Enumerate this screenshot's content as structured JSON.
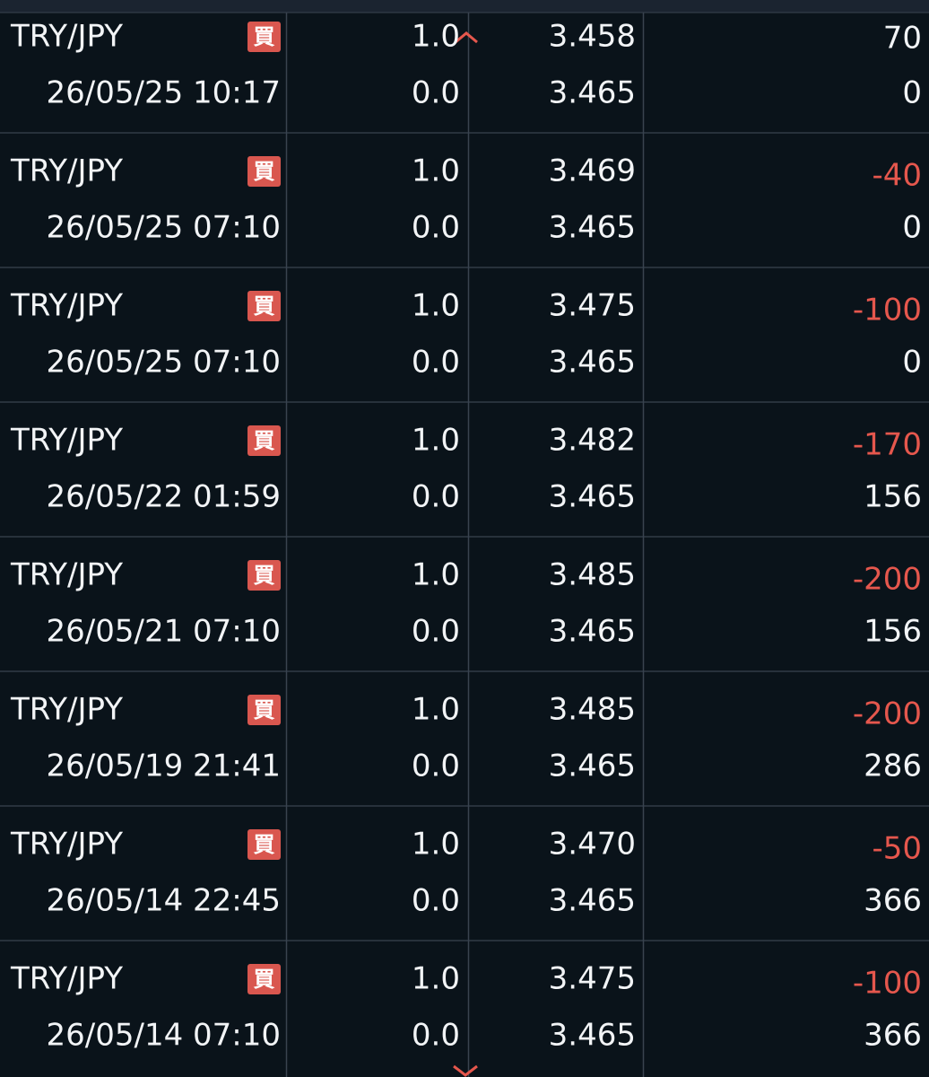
{
  "rows": [
    {
      "pair": "TRY/JPY",
      "side": "買",
      "datetime": "26/05/25 10:17",
      "lots": "1.0",
      "closed_lots": "0.0",
      "open_price": "3.458",
      "current_price": "3.465",
      "profit": "70",
      "swap": "0"
    },
    {
      "pair": "TRY/JPY",
      "side": "買",
      "datetime": "26/05/25 07:10",
      "lots": "1.0",
      "closed_lots": "0.0",
      "open_price": "3.469",
      "current_price": "3.465",
      "profit": "-40",
      "swap": "0"
    },
    {
      "pair": "TRY/JPY",
      "side": "買",
      "datetime": "26/05/25 07:10",
      "lots": "1.0",
      "closed_lots": "0.0",
      "open_price": "3.475",
      "current_price": "3.465",
      "profit": "-100",
      "swap": "0"
    },
    {
      "pair": "TRY/JPY",
      "side": "買",
      "datetime": "26/05/22 01:59",
      "lots": "1.0",
      "closed_lots": "0.0",
      "open_price": "3.482",
      "current_price": "3.465",
      "profit": "-170",
      "swap": "156"
    },
    {
      "pair": "TRY/JPY",
      "side": "買",
      "datetime": "26/05/21 07:10",
      "lots": "1.0",
      "closed_lots": "0.0",
      "open_price": "3.485",
      "current_price": "3.465",
      "profit": "-200",
      "swap": "156"
    },
    {
      "pair": "TRY/JPY",
      "side": "買",
      "datetime": "26/05/19 21:41",
      "lots": "1.0",
      "closed_lots": "0.0",
      "open_price": "3.485",
      "current_price": "3.465",
      "profit": "-200",
      "swap": "286"
    },
    {
      "pair": "TRY/JPY",
      "side": "買",
      "datetime": "26/05/14 22:45",
      "lots": "1.0",
      "closed_lots": "0.0",
      "open_price": "3.470",
      "current_price": "3.465",
      "profit": "-50",
      "swap": "366"
    },
    {
      "pair": "TRY/JPY",
      "side": "買",
      "datetime": "26/05/14 07:10",
      "lots": "1.0",
      "closed_lots": "0.0",
      "open_price": "3.475",
      "current_price": "3.465",
      "profit": "-100",
      "swap": "366"
    }
  ]
}
